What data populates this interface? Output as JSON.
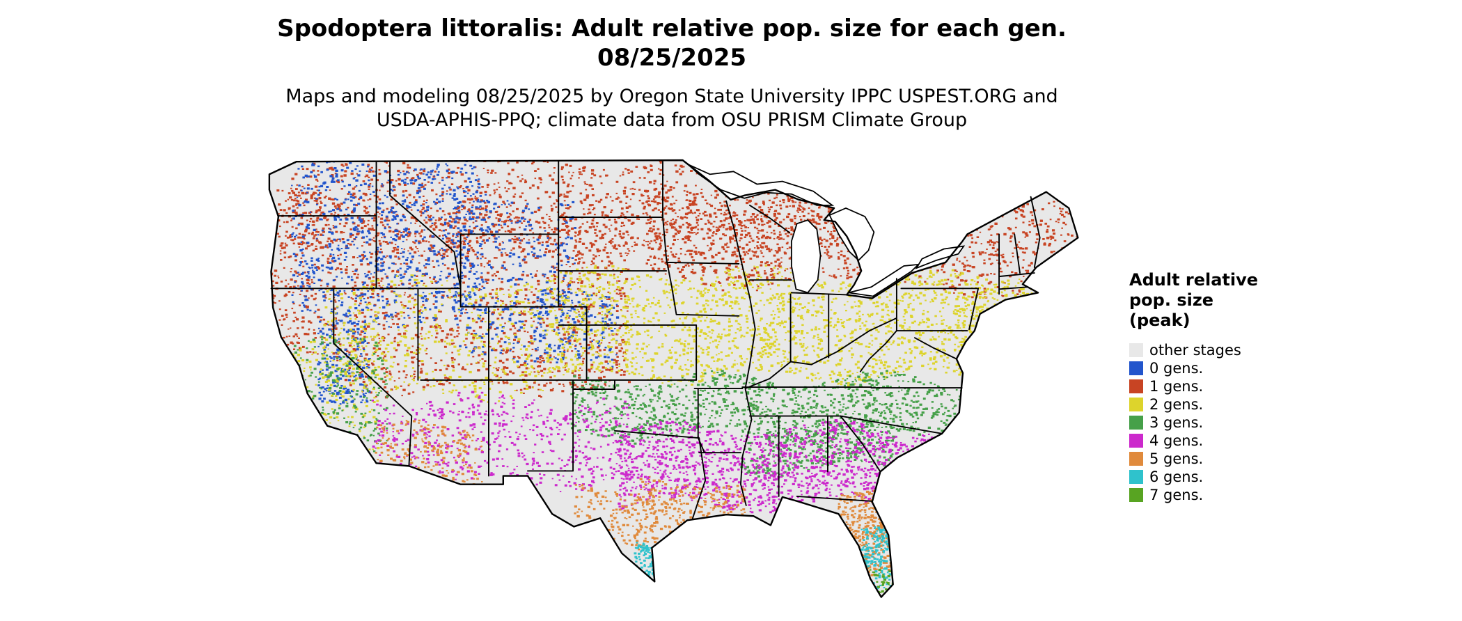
{
  "title": {
    "line1": "Spodoptera littoralis: Adult relative pop. size for each gen.",
    "line2": "08/25/2025"
  },
  "subtitle": {
    "line1": "Maps and modeling 08/25/2025 by Oregon State University IPPC USPEST.ORG and",
    "line2": "USDA-APHIS-PPQ; climate data from OSU PRISM Climate Group"
  },
  "legend": {
    "title_lines": [
      "Adult relative",
      "pop. size",
      "(peak)"
    ],
    "items": [
      {
        "key": "other",
        "label": "other stages",
        "color": "#e8e8e8"
      },
      {
        "key": "g0",
        "label": "0 gens.",
        "color": "#2255cc"
      },
      {
        "key": "g1",
        "label": "1 gens.",
        "color": "#c84423"
      },
      {
        "key": "g2",
        "label": "2 gens.",
        "color": "#ddd42c"
      },
      {
        "key": "g3",
        "label": "3 gens.",
        "color": "#46a049"
      },
      {
        "key": "g4",
        "label": "4 gens.",
        "color": "#cc29cc"
      },
      {
        "key": "g5",
        "label": "5 gens.",
        "color": "#e08a3c"
      },
      {
        "key": "g6",
        "label": "6 gens.",
        "color": "#2fc2cc"
      },
      {
        "key": "g7",
        "label": "7 gens.",
        "color": "#58a422"
      }
    ]
  }
}
